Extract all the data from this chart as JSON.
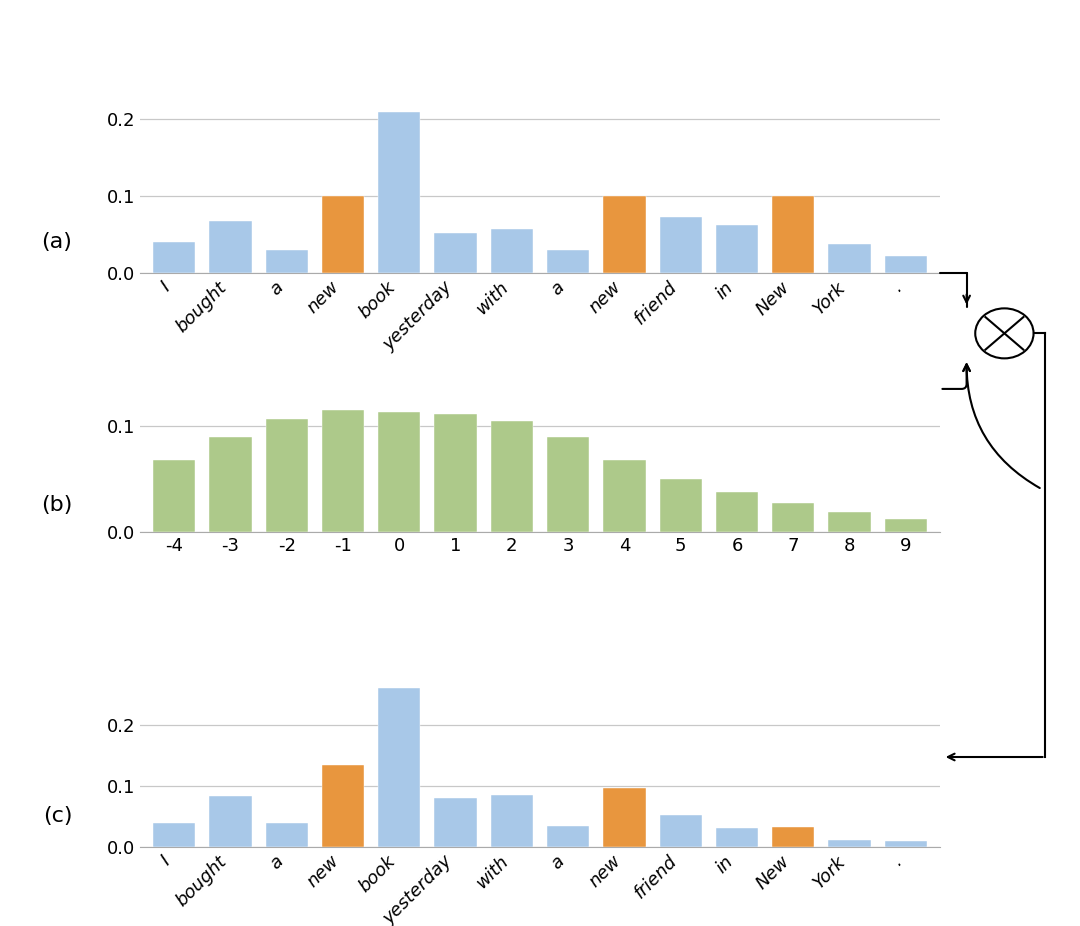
{
  "panel_a_labels": [
    "I",
    "bought",
    "a",
    "new",
    "book",
    "yesterday",
    "with",
    "a",
    "new",
    "friend",
    "in",
    "New",
    "York",
    "."
  ],
  "panel_a_values": [
    0.04,
    0.068,
    0.03,
    0.1,
    0.21,
    0.052,
    0.058,
    0.03,
    0.1,
    0.073,
    0.063,
    0.1,
    0.038,
    0.022
  ],
  "panel_a_colors": [
    "blue",
    "blue",
    "blue",
    "orange",
    "blue",
    "blue",
    "blue",
    "blue",
    "orange",
    "blue",
    "blue",
    "orange",
    "blue",
    "blue"
  ],
  "panel_b_labels": [
    "-4",
    "-3",
    "-2",
    "-1",
    "0",
    "1",
    "2",
    "3",
    "4",
    "5",
    "6",
    "7",
    "8",
    "9"
  ],
  "panel_b_values": [
    0.068,
    0.09,
    0.107,
    0.115,
    0.113,
    0.111,
    0.105,
    0.09,
    0.068,
    0.05,
    0.038,
    0.028,
    0.019,
    0.013
  ],
  "panel_c_labels": [
    "I",
    "bought",
    "a",
    "new",
    "book",
    "yesterday",
    "with",
    "a",
    "new",
    "friend",
    "in",
    "New",
    "York",
    "."
  ],
  "panel_c_values": [
    0.04,
    0.083,
    0.04,
    0.135,
    0.26,
    0.08,
    0.085,
    0.035,
    0.097,
    0.052,
    0.032,
    0.033,
    0.012,
    0.01
  ],
  "panel_c_colors": [
    "blue",
    "blue",
    "blue",
    "orange",
    "blue",
    "blue",
    "blue",
    "blue",
    "orange",
    "blue",
    "blue",
    "orange",
    "blue",
    "blue"
  ],
  "blue_color": "#a8c8e8",
  "orange_color": "#e8963e",
  "green_color": "#adc98a",
  "background_color": "#ffffff",
  "grid_color": "#c8c8c8",
  "panel_a_ylim": [
    0,
    0.235
  ],
  "panel_a_yticks": [
    0.0,
    0.1,
    0.2
  ],
  "panel_b_ylim": [
    0,
    0.135
  ],
  "panel_b_yticks": [
    0.0,
    0.1
  ],
  "panel_c_ylim": [
    0,
    0.295
  ],
  "panel_c_yticks": [
    0.0,
    0.1,
    0.2
  ]
}
